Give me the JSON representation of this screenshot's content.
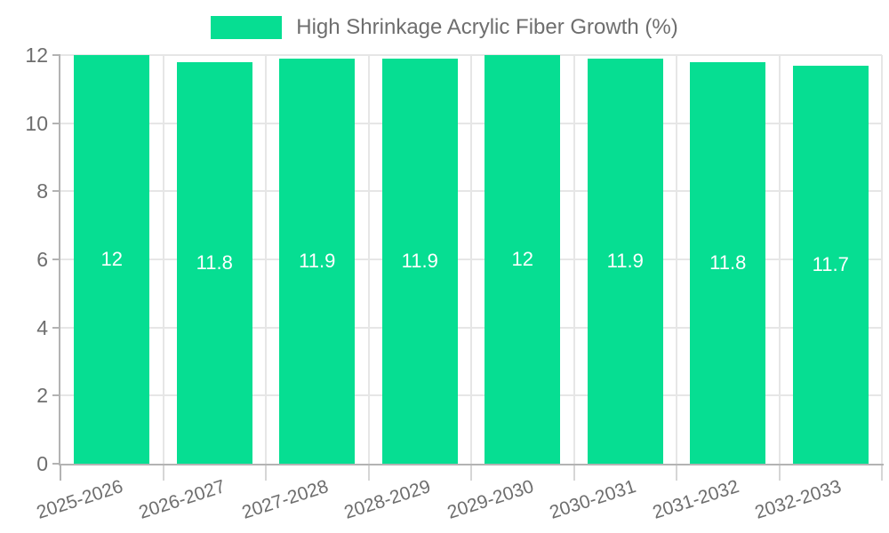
{
  "chart_data": {
    "type": "bar",
    "title": "High Shrinkage Acrylic Fiber Growth (%)",
    "legend": {
      "position": "top",
      "entries": [
        "High Shrinkage Acrylic Fiber Growth (%)"
      ]
    },
    "categories": [
      "2025-2026",
      "2026-2027",
      "2027-2028",
      "2028-2029",
      "2029-2030",
      "2030-2031",
      "2031-2032",
      "2032-2033"
    ],
    "series": [
      {
        "name": "High Shrinkage Acrylic Fiber Growth (%)",
        "values": [
          12,
          11.8,
          11.9,
          11.9,
          12,
          11.9,
          11.8,
          11.7
        ],
        "value_labels": [
          "12",
          "11.8",
          "11.9",
          "11.9",
          "12",
          "11.9",
          "11.8",
          "11.7"
        ]
      }
    ],
    "xlabel": "",
    "ylabel": "",
    "ylim": [
      0,
      12
    ],
    "yticks": [
      0,
      2,
      4,
      6,
      8,
      10,
      12
    ],
    "ytick_labels": [
      "0",
      "2",
      "4",
      "6",
      "8",
      "10",
      "12"
    ],
    "grid": true,
    "bar_label_position": "middle",
    "colors": {
      "bar": "#06de92",
      "grid": "#e6e6e6",
      "axis": "#b3b3b3",
      "tick_minor": "#d6d6d6",
      "text": "#6e6e6e",
      "bar_label": "#ffffff",
      "background": "#ffffff"
    }
  }
}
